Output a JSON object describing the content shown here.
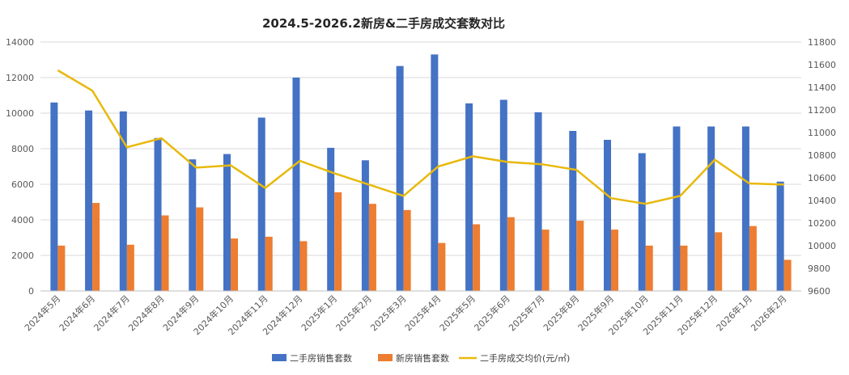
{
  "chart_data": {
    "type": "bar",
    "title": "2024.5-2026.2新房&二手房成交套数对比",
    "categories": [
      "2024年5月",
      "2024年6月",
      "2024年7月",
      "2024年8月",
      "2024年9月",
      "2024年10月",
      "2024年11月",
      "2024年12月",
      "2025年1月",
      "2025年2月",
      "2025年3月",
      "2025年4月",
      "2025年5月",
      "2025年6月",
      "2025年7月",
      "2025年8月",
      "2025年9月",
      "2025年10月",
      "2025年11月",
      "2025年12月",
      "2026年1月",
      "2026年2月"
    ],
    "series": [
      {
        "name": "二手房销售套数",
        "type": "bar",
        "axis": "left",
        "color": "#4472C4",
        "values": [
          10600,
          10150,
          10100,
          8600,
          7400,
          7700,
          9750,
          12000,
          8050,
          7350,
          12650,
          13300,
          10550,
          10750,
          10050,
          9000,
          8500,
          7750,
          9250,
          9250,
          9250,
          6150
        ]
      },
      {
        "name": "新房销售套数",
        "type": "bar",
        "axis": "left",
        "color": "#ED7D31",
        "values": [
          2550,
          4950,
          2600,
          4250,
          4700,
          2950,
          3050,
          2800,
          5550,
          4900,
          4550,
          2700,
          3750,
          4150,
          3450,
          3950,
          3450,
          2550,
          2550,
          3300,
          3650,
          1750
        ]
      },
      {
        "name": "二手房成交均价(元/㎡)",
        "type": "line",
        "axis": "right",
        "color": "#E8B90C",
        "values": [
          11550,
          11370,
          10870,
          10950,
          10690,
          10710,
          10510,
          10750,
          10640,
          10540,
          10440,
          10700,
          10790,
          10740,
          10720,
          10670,
          10420,
          10370,
          10440,
          10760,
          10550,
          10540
        ]
      }
    ],
    "yaxis_left": {
      "min": 0,
      "max": 14000,
      "step": 2000,
      "ticks": [
        "0",
        "2000",
        "4000",
        "6000",
        "8000",
        "10000",
        "12000",
        "14000"
      ]
    },
    "yaxis_right": {
      "min": 9600,
      "max": 11800,
      "step": 200,
      "ticks": [
        "9600",
        "9800",
        "10000",
        "10200",
        "10400",
        "10600",
        "10800",
        "11000",
        "11200",
        "11400",
        "11600",
        "11800"
      ]
    },
    "grid": true,
    "legend": "bottom-center"
  }
}
